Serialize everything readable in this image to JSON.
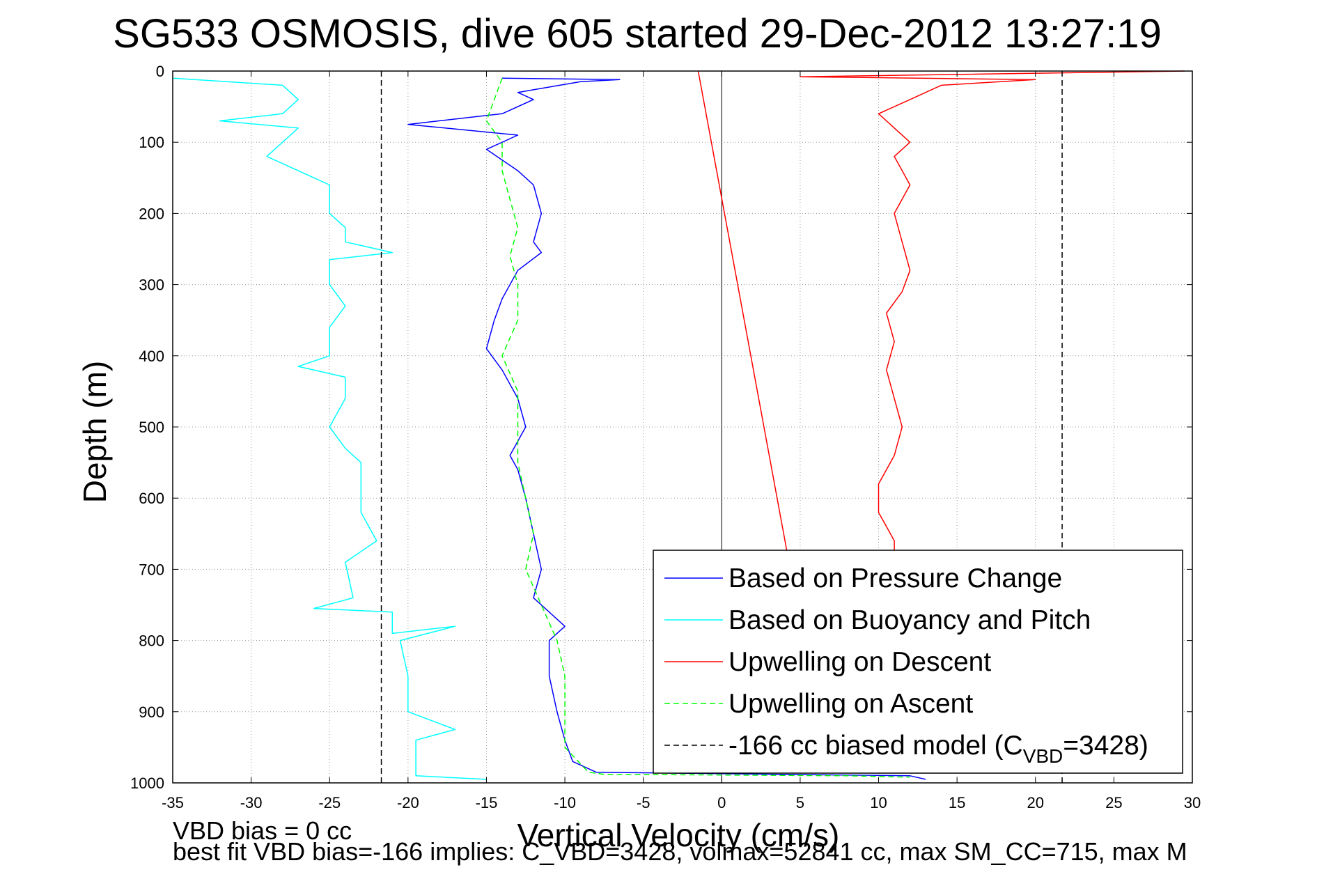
{
  "chart_data": {
    "type": "line",
    "title": "SG533 OSMOSIS, dive 605 started 29-Dec-2012 13:27:19",
    "xlabel": "Vertical Velocity (cm/s)",
    "ylabel": "Depth (m)",
    "xlim": [
      -35,
      30
    ],
    "ylim": [
      0,
      1000
    ],
    "y_reversed": true,
    "grid": true,
    "legend_position": "bottom-right",
    "xticks": [
      "-35",
      "-30",
      "-25",
      "-20",
      "-15",
      "-10",
      "-5",
      "0",
      "5",
      "10",
      "15",
      "20",
      "25",
      "30"
    ],
    "yticks": [
      "0",
      "100",
      "200",
      "300",
      "400",
      "500",
      "600",
      "700",
      "800",
      "900",
      "1000"
    ],
    "series": [
      {
        "name": "Based on Pressure Change",
        "color": "#0000ff",
        "style": "solid",
        "points": [
          [
            -14,
            10
          ],
          [
            -6.5,
            12
          ],
          [
            -9,
            15
          ],
          [
            -13,
            30
          ],
          [
            -12,
            40
          ],
          [
            -14,
            60
          ],
          [
            -20,
            75
          ],
          [
            -13,
            90
          ],
          [
            -15,
            110
          ],
          [
            -13,
            140
          ],
          [
            -12,
            160
          ],
          [
            -11.5,
            200
          ],
          [
            -12,
            240
          ],
          [
            -11.5,
            255
          ],
          [
            -13,
            280
          ],
          [
            -14,
            320
          ],
          [
            -14.5,
            350
          ],
          [
            -15,
            390
          ],
          [
            -14,
            420
          ],
          [
            -13,
            460
          ],
          [
            -12.5,
            500
          ],
          [
            -13.5,
            540
          ],
          [
            -13,
            560
          ],
          [
            -12.5,
            600
          ],
          [
            -12,
            650
          ],
          [
            -11.5,
            700
          ],
          [
            -12,
            740
          ],
          [
            -10,
            780
          ],
          [
            -11,
            800
          ],
          [
            -11,
            850
          ],
          [
            -10.5,
            900
          ],
          [
            -10,
            940
          ],
          [
            -9.5,
            970
          ],
          [
            -8,
            985
          ],
          [
            12,
            990
          ],
          [
            13,
            995
          ]
        ]
      },
      {
        "name": "Based on Buoyancy and Pitch",
        "color": "#00ffff",
        "style": "solid",
        "points": [
          [
            -35,
            10
          ],
          [
            -28,
            20
          ],
          [
            -27,
            40
          ],
          [
            -28,
            60
          ],
          [
            -32,
            70
          ],
          [
            -27,
            80
          ],
          [
            -28,
            100
          ],
          [
            -29,
            120
          ],
          [
            -27,
            140
          ],
          [
            -25,
            160
          ],
          [
            -25,
            200
          ],
          [
            -24,
            220
          ],
          [
            -24,
            240
          ],
          [
            -21,
            255
          ],
          [
            -25,
            265
          ],
          [
            -25,
            300
          ],
          [
            -24,
            330
          ],
          [
            -25,
            360
          ],
          [
            -25,
            400
          ],
          [
            -27,
            415
          ],
          [
            -24,
            430
          ],
          [
            -24,
            460
          ],
          [
            -25,
            500
          ],
          [
            -24,
            530
          ],
          [
            -23,
            550
          ],
          [
            -23,
            580
          ],
          [
            -23,
            620
          ],
          [
            -22,
            660
          ],
          [
            -24,
            690
          ],
          [
            -23.5,
            740
          ],
          [
            -26,
            755
          ],
          [
            -21,
            760
          ],
          [
            -21,
            790
          ],
          [
            -17,
            780
          ],
          [
            -20.5,
            800
          ],
          [
            -20,
            850
          ],
          [
            -20,
            900
          ],
          [
            -17,
            925
          ],
          [
            -19.5,
            940
          ],
          [
            -19.5,
            990
          ],
          [
            -15,
            995
          ]
        ]
      },
      {
        "name": "Upwelling on Descent",
        "color": "#ff0000",
        "style": "solid",
        "points": [
          [
            29.5,
            0
          ],
          [
            5,
            8
          ],
          [
            20,
            12
          ],
          [
            14,
            20
          ],
          [
            12,
            40
          ],
          [
            10,
            60
          ],
          [
            11,
            80
          ],
          [
            12,
            100
          ],
          [
            11,
            120
          ],
          [
            12,
            160
          ],
          [
            11,
            200
          ],
          [
            11.5,
            240
          ],
          [
            12,
            280
          ],
          [
            11.5,
            310
          ],
          [
            10.5,
            340
          ],
          [
            11,
            380
          ],
          [
            10.5,
            420
          ],
          [
            11,
            460
          ],
          [
            11.5,
            500
          ],
          [
            11,
            540
          ],
          [
            10,
            580
          ],
          [
            10,
            620
          ],
          [
            11,
            660
          ],
          [
            11,
            680
          ]
        ]
      },
      {
        "name": "Upwelling on Ascent",
        "color": "#00ff00",
        "style": "dashed",
        "points": [
          [
            -14,
            10
          ],
          [
            -14.5,
            40
          ],
          [
            -15,
            70
          ],
          [
            -14,
            100
          ],
          [
            -14,
            140
          ],
          [
            -13.5,
            180
          ],
          [
            -13,
            220
          ],
          [
            -13.5,
            260
          ],
          [
            -13,
            300
          ],
          [
            -13,
            350
          ],
          [
            -14,
            400
          ],
          [
            -13,
            450
          ],
          [
            -13,
            500
          ],
          [
            -13,
            550
          ],
          [
            -12.5,
            600
          ],
          [
            -12,
            650
          ],
          [
            -12.5,
            700
          ],
          [
            -11.5,
            750
          ],
          [
            -10.5,
            800
          ],
          [
            -10,
            850
          ],
          [
            -10,
            900
          ],
          [
            -10,
            950
          ],
          [
            -8.5,
            985
          ],
          [
            -7.5,
            988
          ],
          [
            8,
            990
          ],
          [
            12,
            992
          ]
        ]
      },
      {
        "name": "-166 cc biased model (C_VBD=3428)",
        "color": "#000000",
        "style": "dashed",
        "points": [
          [
            -21.7,
            0
          ],
          [
            -21.7,
            1000
          ],
          [
            21.7,
            0
          ],
          [
            21.7,
            1000
          ]
        ]
      }
    ],
    "annotations": [
      {
        "text": "VBD bias = 0 cc"
      },
      {
        "text": "best fit VBD bias=-166 implies: C_VBD=3428, volmax=52841 cc, max SM_CC=715, max M"
      }
    ]
  },
  "legend": {
    "items": [
      {
        "label": "Based on Pressure Change",
        "color": "#0000ff",
        "dash": "none"
      },
      {
        "label": "Based on Buoyancy and Pitch",
        "color": "#00ffff",
        "dash": "none"
      },
      {
        "label": "Upwelling on Descent",
        "color": "#ff0000",
        "dash": "none"
      },
      {
        "label": "Upwelling on Ascent",
        "color": "#00ff00",
        "dash": "8,5"
      },
      {
        "label_prefix": "-166 cc biased model (C",
        "label_sub": "VBD",
        "label_suffix": "=3428)",
        "color": "#000000",
        "dash": "8,5"
      }
    ]
  },
  "footer": {
    "line1": "VBD bias = 0 cc",
    "line2": "best fit VBD bias=-166 implies: C_VBD=3428, volmax=52841 cc, max SM_CC=715, max M"
  }
}
